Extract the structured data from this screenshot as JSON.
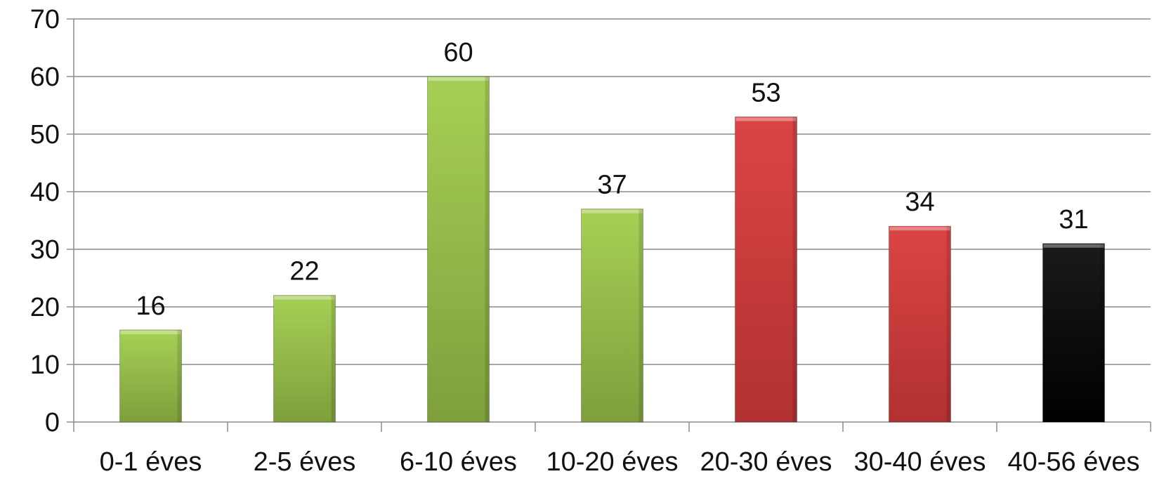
{
  "chart_data": {
    "type": "bar",
    "title": "",
    "xlabel": "",
    "ylabel": "",
    "categories": [
      "0-1 éves",
      "2-5 éves",
      "6-10 éves",
      "10-20 éves",
      "20-30 éves",
      "30-40 éves",
      "40-56 éves"
    ],
    "values": [
      16,
      22,
      60,
      37,
      53,
      34,
      31
    ],
    "data_labels": [
      "16",
      "22",
      "60",
      "37",
      "53",
      "34",
      "31"
    ],
    "bar_colors": [
      "green",
      "green",
      "green",
      "green",
      "red",
      "red",
      "black"
    ],
    "ylim": [
      0,
      70
    ],
    "yticks": [
      0,
      10,
      20,
      30,
      40,
      50,
      60,
      70
    ],
    "ytick_labels": [
      "0",
      "10",
      "20",
      "30",
      "40",
      "50",
      "60",
      "70"
    ],
    "grid": true,
    "legend": "none"
  },
  "colors": {
    "green": "#8db646",
    "red": "#c83a3a",
    "black": "#0a0a0a",
    "grid": "#8c8c8c",
    "axis": "#8c8c8c"
  }
}
